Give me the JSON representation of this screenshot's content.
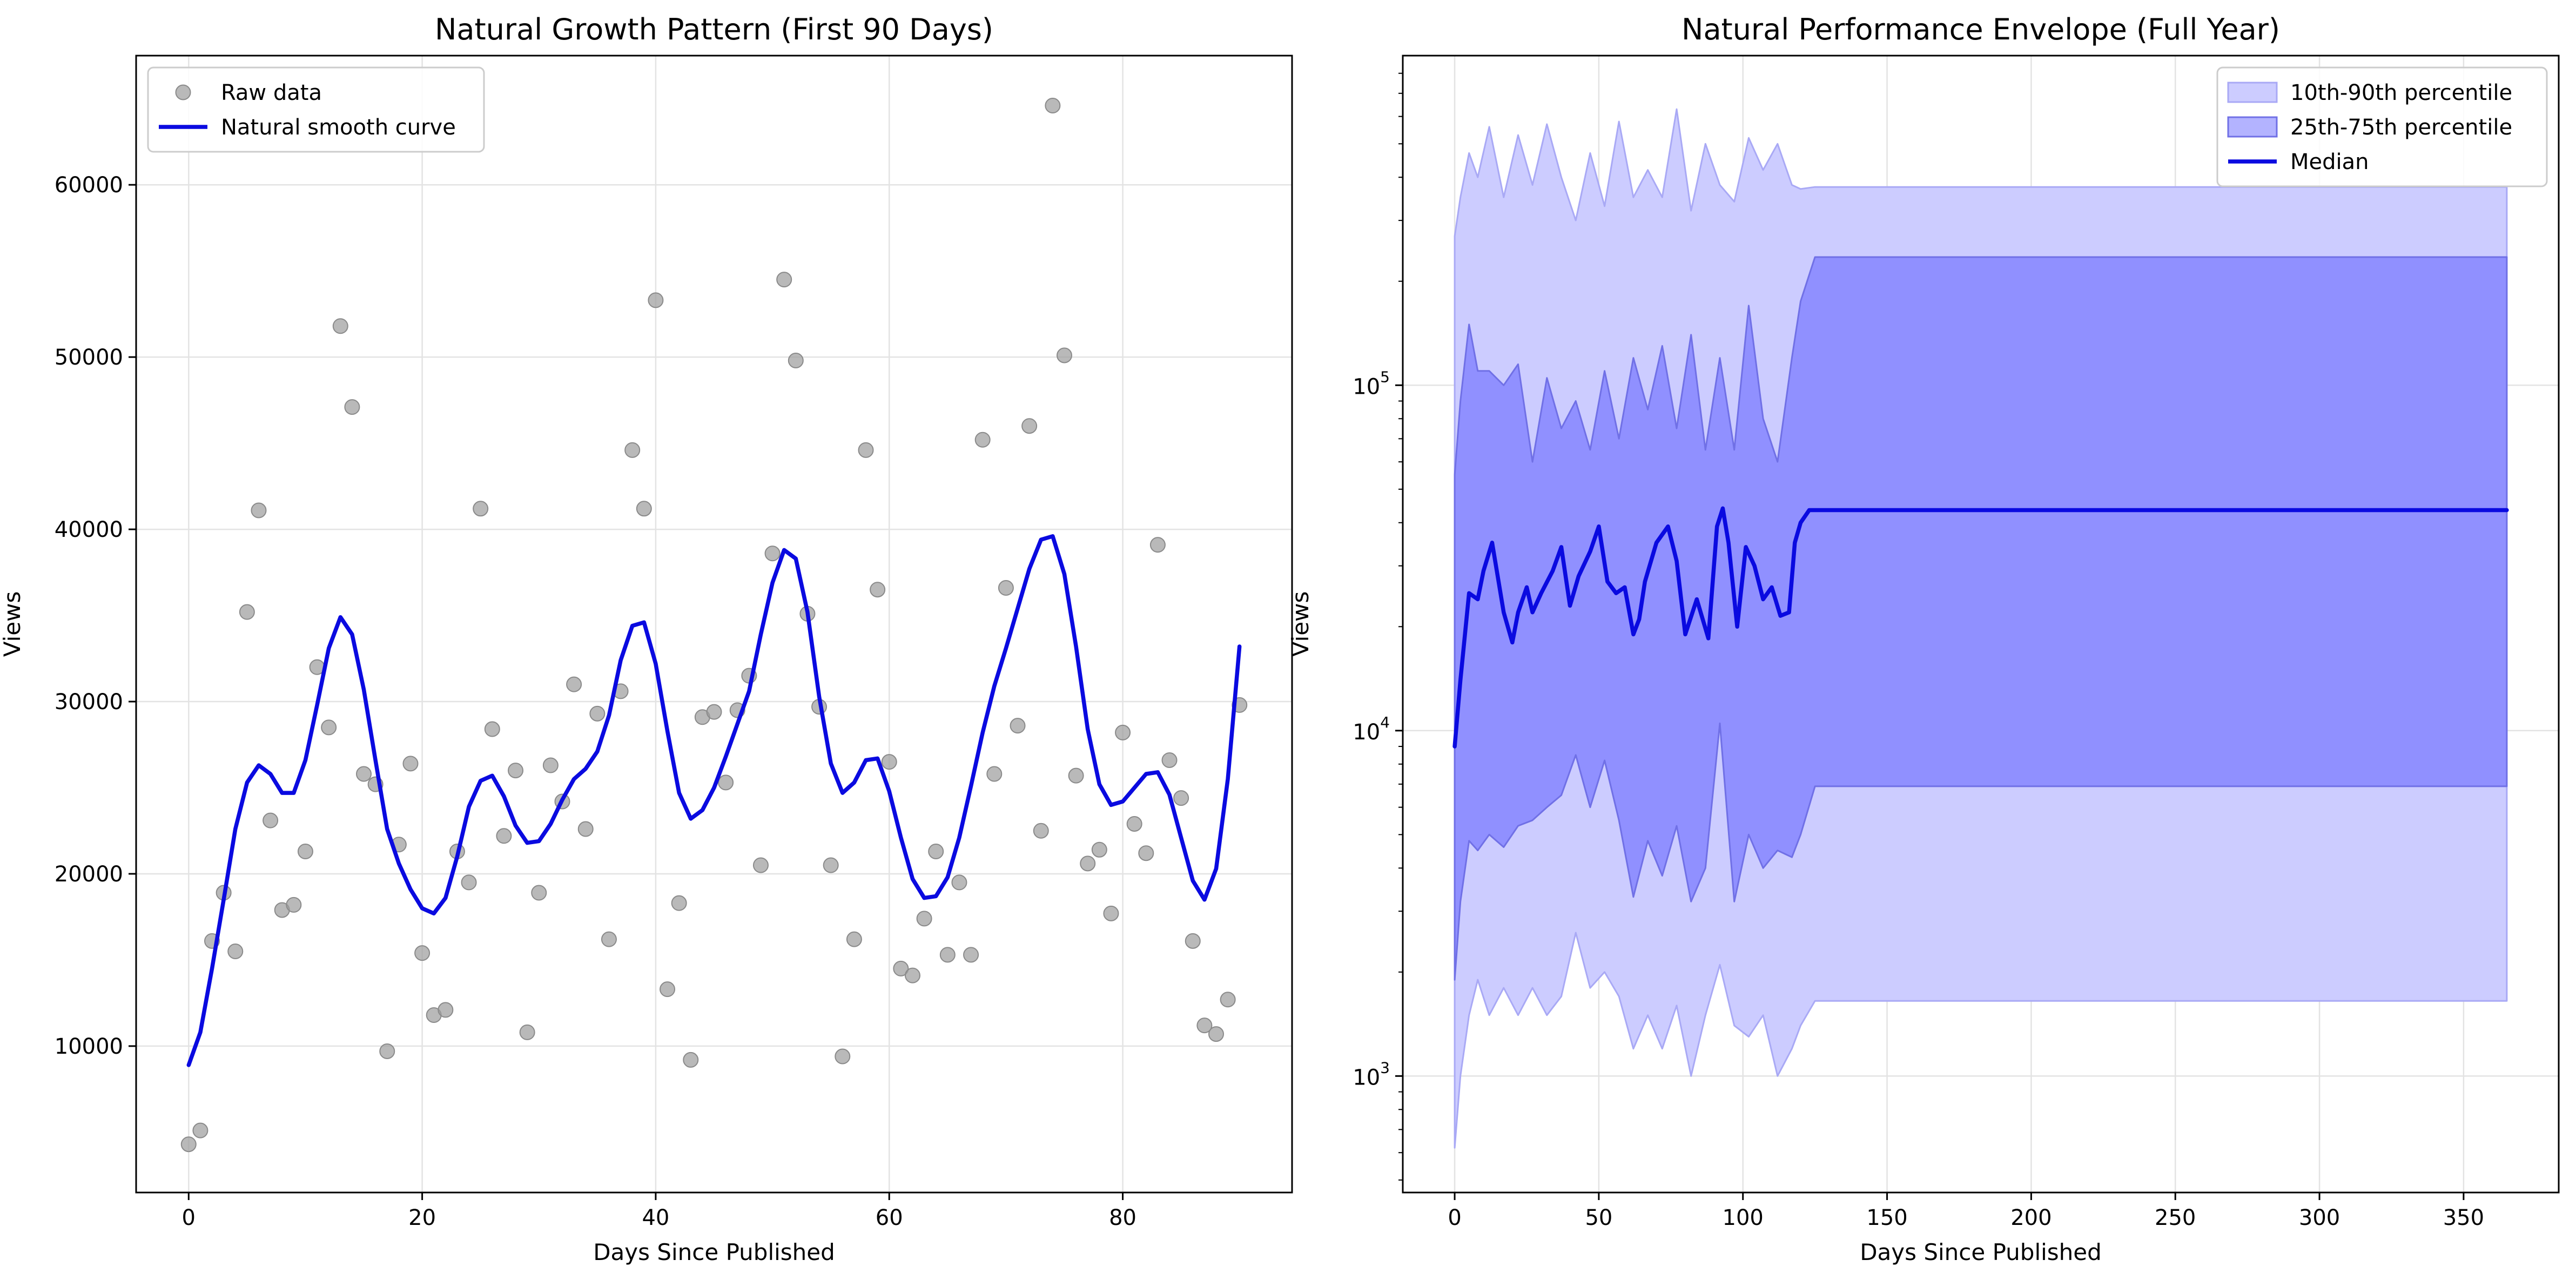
{
  "chart_data": [
    {
      "type": "scatter",
      "title": "Natural Growth Pattern (First 90 Days)",
      "xlabel": "Days Since Published",
      "ylabel": "Views",
      "xlim": [
        -4.5,
        94.5
      ],
      "ylim": [
        1500,
        67500
      ],
      "xticks": [
        0,
        20,
        40,
        60,
        80
      ],
      "yticks": [
        10000,
        20000,
        30000,
        40000,
        50000,
        60000
      ],
      "grid": true,
      "legend_position": "upper-left",
      "colors": {
        "points": "#9e9e9e",
        "curve": "#0a0ae0"
      },
      "series": [
        {
          "name": "Raw data",
          "kind": "scatter",
          "x": [
            0,
            1,
            2,
            3,
            4,
            5,
            6,
            7,
            8,
            9,
            10,
            11,
            12,
            13,
            14,
            15,
            16,
            17,
            18,
            19,
            20,
            21,
            22,
            23,
            24,
            25,
            26,
            27,
            28,
            29,
            30,
            31,
            32,
            33,
            34,
            35,
            36,
            37,
            38,
            39,
            40,
            41,
            42,
            43,
            44,
            45,
            46,
            47,
            48,
            49,
            50,
            51,
            52,
            53,
            54,
            55,
            56,
            57,
            58,
            59,
            60,
            61,
            62,
            63,
            64,
            65,
            66,
            67,
            68,
            69,
            70,
            71,
            72,
            73,
            74,
            75,
            76,
            77,
            78,
            79,
            80,
            81,
            82,
            83,
            84,
            85,
            86,
            87,
            88,
            89,
            90
          ],
          "y": [
            4300,
            5100,
            16100,
            18900,
            15500,
            35200,
            41100,
            23100,
            17900,
            18200,
            21300,
            32000,
            28500,
            51800,
            47100,
            25800,
            25200,
            9700,
            21700,
            26400,
            15400,
            11800,
            12100,
            21300,
            19500,
            41200,
            28400,
            22200,
            26000,
            10800,
            18900,
            26300,
            24200,
            31000,
            22600,
            29300,
            16200,
            30600,
            44600,
            41200,
            53300,
            13300,
            18300,
            9200,
            29100,
            29400,
            25300,
            29500,
            31500,
            20500,
            38600,
            54500,
            49800,
            35100,
            29700,
            20500,
            9400,
            16200,
            44600,
            36500,
            26500,
            14500,
            14100,
            17400,
            21300,
            15300,
            19500,
            15300,
            45200,
            25800,
            36600,
            28600,
            46000,
            22500,
            64600,
            50100,
            25700,
            20600,
            21400,
            17700,
            28200,
            22900,
            21200,
            39100,
            26600,
            24400,
            16100,
            11200,
            10700,
            12700,
            29800
          ]
        },
        {
          "name": "Natural smooth curve",
          "kind": "line",
          "x": [
            0,
            1,
            2,
            3,
            4,
            5,
            6,
            7,
            8,
            9,
            10,
            11,
            12,
            13,
            14,
            15,
            16,
            17,
            18,
            19,
            20,
            21,
            22,
            23,
            24,
            25,
            26,
            27,
            28,
            29,
            30,
            31,
            32,
            33,
            34,
            35,
            36,
            37,
            38,
            39,
            40,
            41,
            42,
            43,
            44,
            45,
            46,
            47,
            48,
            49,
            50,
            51,
            52,
            53,
            54,
            55,
            56,
            57,
            58,
            59,
            60,
            61,
            62,
            63,
            64,
            65,
            66,
            67,
            68,
            69,
            70,
            71,
            72,
            73,
            74,
            75,
            76,
            77,
            78,
            79,
            80,
            81,
            82,
            83,
            84,
            85,
            86,
            87,
            88,
            89,
            90
          ],
          "y": [
            8900,
            10800,
            14500,
            18500,
            22600,
            25300,
            26300,
            25800,
            24700,
            24700,
            26600,
            29800,
            33100,
            34900,
            33900,
            30700,
            26600,
            22600,
            20600,
            19100,
            18000,
            17700,
            18600,
            21000,
            23900,
            25400,
            25700,
            24500,
            22800,
            21800,
            21900,
            22900,
            24300,
            25500,
            26100,
            27100,
            29200,
            32400,
            34400,
            34600,
            32200,
            28300,
            24700,
            23200,
            23700,
            25000,
            26800,
            28700,
            30600,
            33900,
            36900,
            38800,
            38300,
            35200,
            30300,
            26400,
            24700,
            25300,
            26600,
            26700,
            24800,
            22100,
            19700,
            18600,
            18700,
            19800,
            22100,
            25100,
            28200,
            30900,
            33100,
            35400,
            37700,
            39400,
            39600,
            37400,
            33200,
            28400,
            25200,
            24000,
            24200,
            25000,
            25800,
            25900,
            24600,
            22100,
            19600,
            18500,
            20300,
            25500,
            33200
          ]
        }
      ]
    },
    {
      "type": "area",
      "title": "Natural Performance Envelope (Full Year)",
      "xlabel": "Days Since Published",
      "ylabel": "Views",
      "yscale": "log",
      "xlim": [
        -18,
        383
      ],
      "ylim": [
        460,
        900000
      ],
      "xticks": [
        0,
        50,
        100,
        150,
        200,
        250,
        300,
        350
      ],
      "yticks": [
        1000,
        10000,
        100000
      ],
      "ytick_labels": [
        {
          "base": "10",
          "exp": "3"
        },
        {
          "base": "10",
          "exp": "4"
        },
        {
          "base": "10",
          "exp": "5"
        }
      ],
      "grid": true,
      "legend_position": "upper-right",
      "colors": {
        "band_outer": "#ccccff",
        "band_inner": "#9090ff",
        "median": "#0a0ae0"
      },
      "series": [
        {
          "name": "10th-90th percentile",
          "kind": "band",
          "x": [
            0,
            2,
            5,
            8,
            12,
            17,
            22,
            27,
            32,
            37,
            42,
            47,
            52,
            57,
            62,
            67,
            72,
            77,
            82,
            87,
            92,
            97,
            102,
            107,
            112,
            117,
            120,
            125,
            365
          ],
          "lower": [
            620,
            1000,
            1500,
            1900,
            1500,
            1800,
            1500,
            1800,
            1500,
            1700,
            2600,
            1800,
            2000,
            1700,
            1200,
            1500,
            1200,
            1600,
            1000,
            1500,
            2100,
            1400,
            1300,
            1500,
            1000,
            1200,
            1400,
            1650,
            1650
          ],
          "upper": [
            270000,
            350000,
            470000,
            400000,
            560000,
            350000,
            530000,
            380000,
            570000,
            400000,
            300000,
            470000,
            330000,
            580000,
            350000,
            420000,
            350000,
            630000,
            320000,
            500000,
            380000,
            340000,
            520000,
            420000,
            500000,
            380000,
            370000,
            375000,
            375000
          ]
        },
        {
          "name": "25th-75th percentile",
          "kind": "band",
          "x": [
            0,
            2,
            5,
            8,
            12,
            17,
            22,
            27,
            32,
            37,
            42,
            47,
            52,
            57,
            62,
            67,
            72,
            77,
            82,
            87,
            92,
            97,
            102,
            107,
            112,
            117,
            120,
            125,
            365
          ],
          "lower": [
            1900,
            3200,
            4800,
            4500,
            5000,
            4600,
            5300,
            5500,
            6000,
            6500,
            8500,
            6000,
            8200,
            5500,
            3300,
            4800,
            3800,
            5300,
            3200,
            4000,
            10500,
            3200,
            5000,
            4000,
            4500,
            4300,
            5000,
            6900,
            6900
          ],
          "upper": [
            55000,
            90000,
            150000,
            110000,
            110000,
            100000,
            115000,
            60000,
            105000,
            75000,
            90000,
            65000,
            110000,
            70000,
            120000,
            85000,
            130000,
            75000,
            140000,
            65000,
            120000,
            65000,
            170000,
            80000,
            60000,
            120000,
            175000,
            235000,
            235000
          ]
        },
        {
          "name": "Median",
          "kind": "line",
          "x": [
            0,
            2,
            5,
            8,
            10,
            13,
            17,
            20,
            22,
            25,
            27,
            30,
            34,
            37,
            40,
            43,
            47,
            50,
            53,
            56,
            59,
            62,
            64,
            66,
            70,
            74,
            77,
            80,
            84,
            88,
            91,
            93,
            95,
            98,
            101,
            104,
            107,
            110,
            113,
            116,
            118,
            120,
            123,
            125,
            365
          ],
          "y": [
            9000,
            14000,
            25000,
            24000,
            29000,
            35000,
            22000,
            18000,
            22000,
            26000,
            22000,
            25000,
            29000,
            34000,
            23000,
            28000,
            33000,
            39000,
            27000,
            25000,
            26000,
            19000,
            21000,
            27000,
            35000,
            39000,
            31000,
            19000,
            24000,
            18500,
            39000,
            44000,
            35000,
            20000,
            34000,
            30000,
            24000,
            26000,
            21500,
            22000,
            35000,
            40000,
            43500,
            43500,
            43500
          ]
        }
      ]
    }
  ]
}
